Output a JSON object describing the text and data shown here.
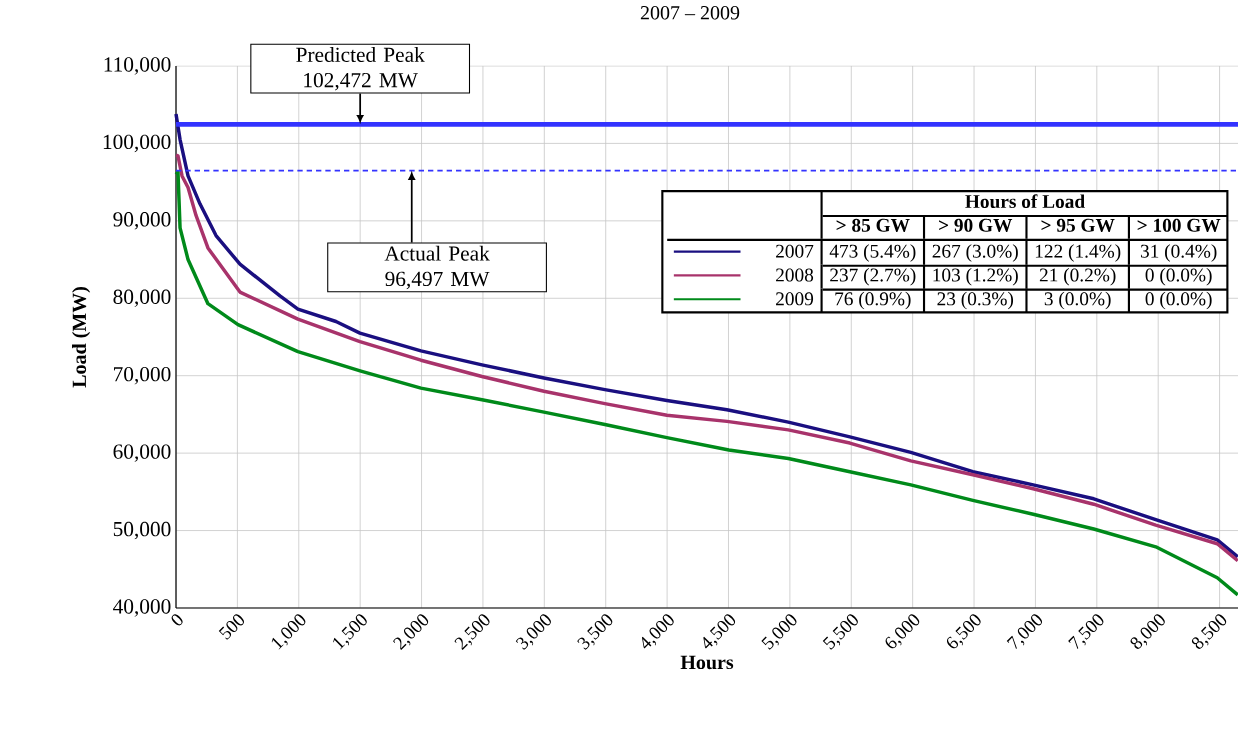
{
  "chart_data": {
    "type": "line",
    "title": "2007 – 2009",
    "xlabel": "Hours",
    "ylabel": "Load (MW)",
    "xlim": [
      0,
      8650
    ],
    "ylim": [
      40000,
      110000
    ],
    "xticks": [
      0,
      500,
      {
        "value": 1000,
        "label": "1,000"
      },
      {
        "value": 1500,
        "label": "1,500"
      },
      {
        "value": 2000,
        "label": "2,000"
      },
      {
        "value": 2500,
        "label": "2,500"
      },
      {
        "value": 3000,
        "label": "3,000"
      },
      {
        "value": 3500,
        "label": "3,500"
      },
      {
        "value": 4000,
        "label": "4,000"
      },
      {
        "value": 4500,
        "label": "4,500"
      },
      {
        "value": 5000,
        "label": "5,000"
      },
      {
        "value": 5500,
        "label": "5,500"
      },
      {
        "value": 6000,
        "label": "6,000"
      },
      {
        "value": 6500,
        "label": "6,500"
      },
      {
        "value": 7000,
        "label": "7,000"
      },
      {
        "value": 7500,
        "label": "7,500"
      },
      {
        "value": 8000,
        "label": "8,000"
      },
      {
        "value": 8500,
        "label": "8,500"
      }
    ],
    "yticks": [
      {
        "value": 40000,
        "label": "40,000"
      },
      {
        "value": 50000,
        "label": "50,000"
      },
      {
        "value": 60000,
        "label": "60,000"
      },
      {
        "value": 70000,
        "label": "70,000"
      },
      {
        "value": 80000,
        "label": "80,000"
      },
      {
        "value": 90000,
        "label": "90,000"
      },
      {
        "value": 100000,
        "label": "100,000"
      },
      {
        "value": 110000,
        "label": "110,000"
      }
    ],
    "grid": true,
    "legend": "top right",
    "marker": "none",
    "line_style": "solid",
    "series": [
      {
        "name": "2007",
        "color": "#1a0f80",
        "x": [
          0,
          33,
          98,
          195,
          326,
          521,
          847,
          993,
          1303,
          1498,
          1995,
          2492,
          2997,
          3493,
          3998,
          4487,
          4987,
          5488,
          5985,
          6490,
          6982,
          7475,
          7980,
          8481,
          8648
        ],
        "values": [
          103800,
          100500,
          95800,
          92200,
          88100,
          84400,
          80300,
          78600,
          77000,
          75500,
          73200,
          71400,
          69700,
          68200,
          66800,
          65600,
          64000,
          62100,
          60100,
          57600,
          55900,
          54100,
          51400,
          48800,
          46600
        ]
      },
      {
        "name": "2008",
        "color": "#a8336b",
        "x": [
          0,
          16,
          49,
          98,
          163,
          260,
          521,
          993,
          1498,
          1995,
          2492,
          2997,
          3493,
          3998,
          4487,
          4987,
          5488,
          5985,
          6490,
          6982,
          7475,
          7980,
          8481,
          8648
        ],
        "values": [
          98500,
          98400,
          95800,
          94300,
          90700,
          86500,
          80800,
          77300,
          74400,
          72000,
          69900,
          68000,
          66400,
          64900,
          64100,
          63000,
          61300,
          59000,
          57200,
          55400,
          53400,
          50700,
          48300,
          46100
        ]
      },
      {
        "name": "2009",
        "color": "#008a1a",
        "x": [
          0,
          16,
          33,
          98,
          260,
          505,
          993,
          1506,
          1995,
          2492,
          2997,
          3493,
          3998,
          4503,
          4987,
          5488,
          5985,
          6490,
          6982,
          7475,
          7980,
          8481,
          8648
        ],
        "values": [
          96000,
          96300,
          89100,
          85000,
          79300,
          76600,
          73100,
          70600,
          68400,
          66900,
          65300,
          63700,
          62000,
          60400,
          59300,
          57600,
          55900,
          53900,
          52100,
          50200,
          47900,
          43900,
          41700
        ]
      }
    ],
    "ref_lines": [
      {
        "axis": "y",
        "value": 102472,
        "color": "#3333ff",
        "line_style": "solid"
      },
      {
        "axis": "y",
        "value": 96497,
        "color": "#3333ff",
        "line_style": "dashed"
      }
    ],
    "annotations": [
      {
        "text": "Predicted Peak 102,472 MW",
        "x": 1500,
        "y": 102472
      },
      {
        "text": "Actual Peak 96,497 MW",
        "x": 1920,
        "y": 96497
      },
      "Hours of Load",
      "> 85 GW",
      "> 90 GW",
      "> 95 GW",
      "> 100 GW",
      "473 (5.4%)",
      "267 (3.0%)",
      "122 (1.4%)",
      "31 (0.4%)",
      "237 (2.7%)",
      "103 (1.2%)",
      "21 (0.2%)",
      "0 (0.0%)",
      "76 (0.9%)",
      "23 (0.3%)",
      "3 (0.0%)",
      "0 (0.0%)"
    ]
  }
}
